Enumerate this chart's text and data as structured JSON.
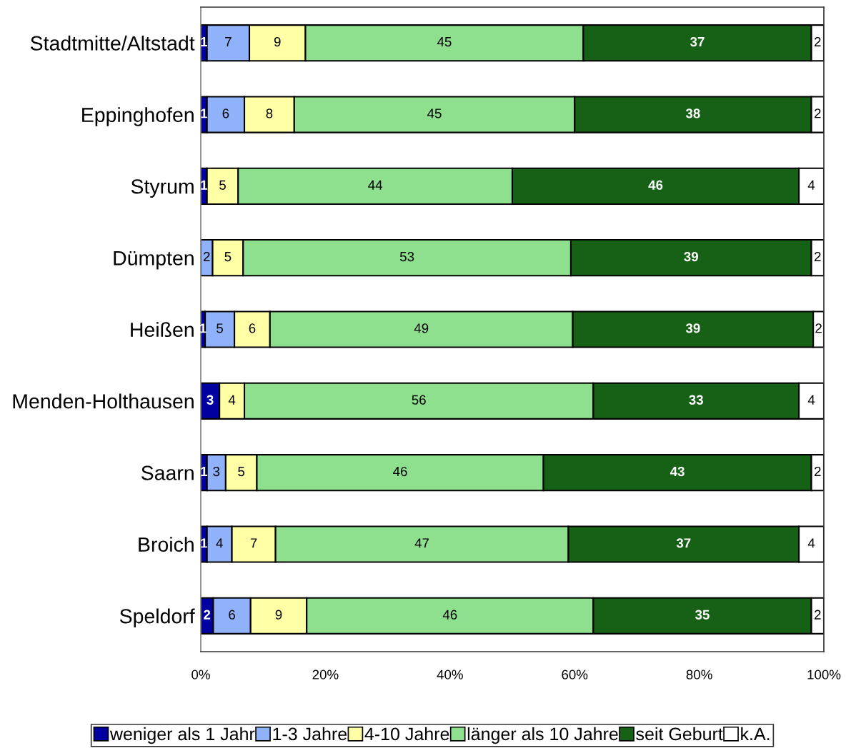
{
  "chart_data": {
    "type": "bar",
    "orientation": "horizontal",
    "stacked": true,
    "categories": [
      "Stadtmitte/Altstadt",
      "Eppinghofen",
      "Styrum",
      "Dümpten",
      "Heißen",
      "Menden-Holthausen",
      "Saarn",
      "Broich",
      "Speldorf"
    ],
    "series": [
      {
        "name": "weniger als 1 Jahr",
        "color": "#0000a0",
        "values": [
          1.0,
          1,
          1,
          null,
          0.7,
          3,
          1,
          1,
          2
        ],
        "value_labels": [
          "1",
          "1",
          "1",
          null,
          "1",
          "3",
          "1",
          "1",
          "2"
        ]
      },
      {
        "name": "1-3 Jahre",
        "color": "#8fb2fb",
        "values": [
          6.8,
          6,
          null,
          1.9,
          4.7,
          null,
          3,
          4,
          6
        ],
        "value_labels": [
          "7",
          "6",
          null,
          "2",
          "5",
          null,
          "3",
          "4",
          "6"
        ]
      },
      {
        "name": "4-10 Jahre",
        "color": "#ffffa6",
        "values": [
          9.0,
          8,
          5,
          4.9,
          5.7,
          4,
          5,
          7,
          9
        ],
        "value_labels": [
          "9",
          "8",
          "5",
          "5",
          "6",
          "4",
          "5",
          "7",
          "9"
        ]
      },
      {
        "name": "länger als 10 Jahre",
        "color": "#8ee08e",
        "values": [
          44.6,
          45,
          44,
          52.6,
          48.6,
          56,
          46,
          47,
          46
        ],
        "value_labels": [
          "45",
          "45",
          "44",
          "53",
          "49",
          "56",
          "46",
          "47",
          "46"
        ]
      },
      {
        "name": "seit Geburt",
        "color": "#176117",
        "values": [
          36.6,
          38,
          46,
          38.6,
          38.6,
          33,
          43,
          37,
          35
        ],
        "value_labels": [
          "37",
          "38",
          "46",
          "39",
          "39",
          "33",
          "43",
          "37",
          "35"
        ]
      },
      {
        "name": "k.A.",
        "color": "#ffffff",
        "values": [
          2.0,
          2,
          4,
          2.0,
          1.7,
          4,
          2,
          4,
          2
        ],
        "value_labels": [
          "2",
          "2",
          "4",
          "2",
          "2",
          "4",
          "2",
          "4",
          "2"
        ]
      }
    ],
    "xlim": [
      0,
      100
    ],
    "xticks": [
      {
        "value": 0,
        "label": "0%"
      },
      {
        "value": 20,
        "label": "20%"
      },
      {
        "value": 40,
        "label": "40%"
      },
      {
        "value": 60,
        "label": "60%"
      },
      {
        "value": 80,
        "label": "80%"
      },
      {
        "value": 100,
        "label": "100%"
      }
    ],
    "legend": "bottom"
  }
}
